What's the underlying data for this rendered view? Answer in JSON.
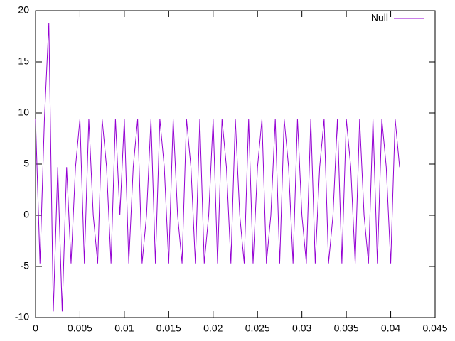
{
  "chart_data": {
    "type": "line",
    "x": [
      0,
      0.0005,
      0.001,
      0.0015,
      0.002,
      0.0025,
      0.003,
      0.0035,
      0.004,
      0.0045,
      0.005,
      0.0055,
      0.006,
      0.0065,
      0.007,
      0.0075,
      0.008,
      0.0085,
      0.009,
      0.0095,
      0.01,
      0.0105,
      0.011,
      0.0115,
      0.012,
      0.0125,
      0.013,
      0.0135,
      0.014,
      0.0145,
      0.015,
      0.0155,
      0.016,
      0.0165,
      0.017,
      0.0175,
      0.018,
      0.0185,
      0.019,
      0.0195,
      0.02,
      0.0205,
      0.021,
      0.0215,
      0.022,
      0.0225,
      0.023,
      0.0235,
      0.024,
      0.0245,
      0.025,
      0.0255,
      0.026,
      0.0265,
      0.027,
      0.0275,
      0.028,
      0.0285,
      0.029,
      0.0295,
      0.03,
      0.0305,
      0.031,
      0.0315,
      0.032,
      0.0325,
      0.033,
      0.0335,
      0.034,
      0.0345,
      0.035,
      0.0355,
      0.036,
      0.0365,
      0.037,
      0.0375,
      0.038,
      0.0385,
      0.039,
      0.0395,
      0.04,
      0.0405,
      0.041
    ],
    "series": [
      {
        "name": "Null",
        "color": "#9400d3",
        "values": [
          9.4,
          -4.7,
          9.4,
          18.8,
          -9.4,
          4.7,
          -9.4,
          4.7,
          -4.7,
          4.7,
          9.4,
          -4.7,
          9.4,
          0,
          -4.7,
          9.4,
          4.7,
          -4.7,
          9.4,
          0,
          9.4,
          -4.7,
          4.7,
          9.4,
          -4.7,
          0,
          9.4,
          -4.7,
          9.4,
          4.7,
          -4.7,
          9.4,
          0,
          -4.7,
          9.4,
          4.7,
          -4.7,
          9.4,
          -4.7,
          0,
          9.4,
          -4.7,
          9.4,
          4.7,
          -4.7,
          9.4,
          0,
          -4.7,
          9.4,
          -4.7,
          4.7,
          9.4,
          -4.7,
          0,
          9.4,
          -4.7,
          9.4,
          4.7,
          -4.7,
          9.4,
          0,
          -4.7,
          9.4,
          -4.7,
          4.7,
          9.4,
          -4.7,
          0,
          9.4,
          -4.7,
          9.4,
          4.7,
          -4.7,
          9.4,
          0,
          -4.7,
          9.4,
          -4.7,
          9.4,
          4.7,
          -4.7,
          9.4,
          4.7
        ]
      }
    ],
    "xlim": [
      0,
      0.045
    ],
    "xticks": [
      0,
      0.005,
      0.01,
      0.015,
      0.02,
      0.025,
      0.03,
      0.035,
      0.04,
      0.045
    ],
    "ylim": [
      -10,
      20
    ],
    "yticks": [
      -10,
      -5,
      0,
      5,
      10,
      15,
      20
    ],
    "legend": "top-right"
  }
}
